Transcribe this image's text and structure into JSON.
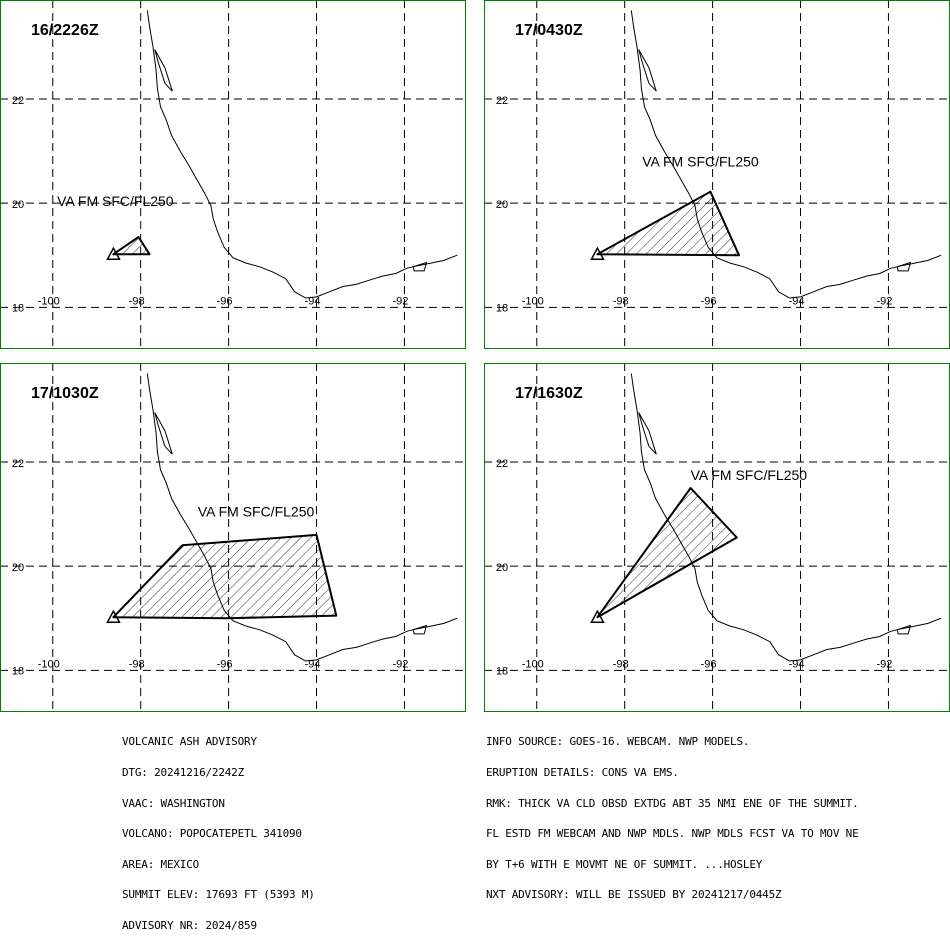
{
  "colors": {
    "frame": "#008000",
    "ink": "#000000",
    "background": "#ffffff"
  },
  "map_frame": {
    "lon_min": -101.2,
    "lon_max": -90.6,
    "lat_min": 17.2,
    "lat_max": 23.9
  },
  "lat_ticks": [
    "22",
    "20",
    "18"
  ],
  "lon_ticks": [
    "-100",
    "-98",
    "-96",
    "-94",
    "-92"
  ],
  "coastline": [
    [
      -97.85,
      23.7
    ],
    [
      -97.8,
      23.4
    ],
    [
      -97.72,
      23.0
    ],
    [
      -97.65,
      22.55
    ],
    [
      -97.62,
      22.2
    ],
    [
      -97.55,
      21.85
    ],
    [
      -97.42,
      21.6
    ],
    [
      -97.3,
      21.3
    ],
    [
      -97.1,
      21.0
    ],
    [
      -96.9,
      20.72
    ],
    [
      -96.72,
      20.45
    ],
    [
      -96.55,
      20.2
    ],
    [
      -96.4,
      19.95
    ],
    [
      -96.35,
      19.7
    ],
    [
      -96.25,
      19.45
    ],
    [
      -96.1,
      19.15
    ],
    [
      -95.9,
      18.95
    ],
    [
      -95.6,
      18.85
    ],
    [
      -95.3,
      18.78
    ],
    [
      -95.0,
      18.68
    ],
    [
      -94.7,
      18.55
    ],
    [
      -94.5,
      18.3
    ],
    [
      -94.25,
      18.18
    ],
    [
      -94.0,
      18.2
    ],
    [
      -93.7,
      18.3
    ],
    [
      -93.4,
      18.4
    ],
    [
      -93.1,
      18.44
    ],
    [
      -92.8,
      18.52
    ],
    [
      -92.5,
      18.6
    ],
    [
      -92.2,
      18.65
    ],
    [
      -91.95,
      18.75
    ],
    [
      -91.7,
      18.8
    ],
    [
      -91.4,
      18.85
    ],
    [
      -91.1,
      18.9
    ],
    [
      -90.8,
      19.0
    ]
  ],
  "lagoons": [
    [
      [
        -97.68,
        22.95
      ],
      [
        -97.45,
        22.6
      ],
      [
        -97.28,
        22.15
      ],
      [
        -97.45,
        22.3
      ],
      [
        -97.6,
        22.7
      ]
    ],
    [
      [
        -91.8,
        18.78
      ],
      [
        -91.5,
        18.86
      ],
      [
        -91.55,
        18.7
      ],
      [
        -91.78,
        18.7
      ]
    ]
  ],
  "summit": {
    "lon": -98.62,
    "lat": 19.02
  },
  "panels": [
    {
      "time": "16/2226Z",
      "label": "VA FM SFC/FL250",
      "label_pos": {
        "lon": -99.9,
        "lat": 19.95
      },
      "polygon": [
        [
          -98.62,
          19.02
        ],
        [
          -98.05,
          19.35
        ],
        [
          -97.8,
          19.02
        ]
      ]
    },
    {
      "time": "17/0430Z",
      "label": "VA FM SFC/FL250",
      "label_pos": {
        "lon": -97.6,
        "lat": 20.7
      },
      "polygon": [
        [
          -98.62,
          19.02
        ],
        [
          -96.05,
          20.22
        ],
        [
          -95.4,
          19.0
        ]
      ]
    },
    {
      "time": "17/1030Z",
      "label": "VA FM SFC/FL250",
      "label_pos": {
        "lon": -96.7,
        "lat": 20.95
      },
      "polygon": [
        [
          -98.62,
          19.02
        ],
        [
          -97.05,
          20.4
        ],
        [
          -94.0,
          20.6
        ],
        [
          -93.55,
          19.05
        ],
        [
          -96.0,
          19.0
        ]
      ]
    },
    {
      "time": "17/1630Z",
      "label": "VA FM SFC/FL250",
      "label_pos": {
        "lon": -96.5,
        "lat": 21.65
      },
      "polygon": [
        [
          -98.62,
          19.02
        ],
        [
          -96.5,
          21.5
        ],
        [
          -95.45,
          20.55
        ]
      ]
    }
  ],
  "advisory_left": [
    "VOLCANIC ASH ADVISORY",
    "DTG: 20241216/2242Z",
    "VAAC: WASHINGTON",
    "VOLCANO: POPOCATEPETL 341090",
    "AREA: MEXICO",
    "SUMMIT ELEV: 17693 FT (5393 M)",
    "ADVISORY NR: 2024/859"
  ],
  "advisory_right": [
    "INFO SOURCE: GOES-16. WEBCAM. NWP MODELS.",
    "ERUPTION DETAILS: CONS VA EMS.",
    "RMK: THICK VA CLD OBSD EXTDG ABT 35 NMI ENE OF THE SUMMIT.",
    "FL ESTD FM WEBCAM AND NWP MDLS. NWP MDLS FCST VA TO MOV NE",
    "BY T+6 WITH E MOVMT NE OF SUMMIT. ...HOSLEY",
    "NXT ADVISORY: WILL BE ISSUED BY 20241217/0445Z"
  ]
}
